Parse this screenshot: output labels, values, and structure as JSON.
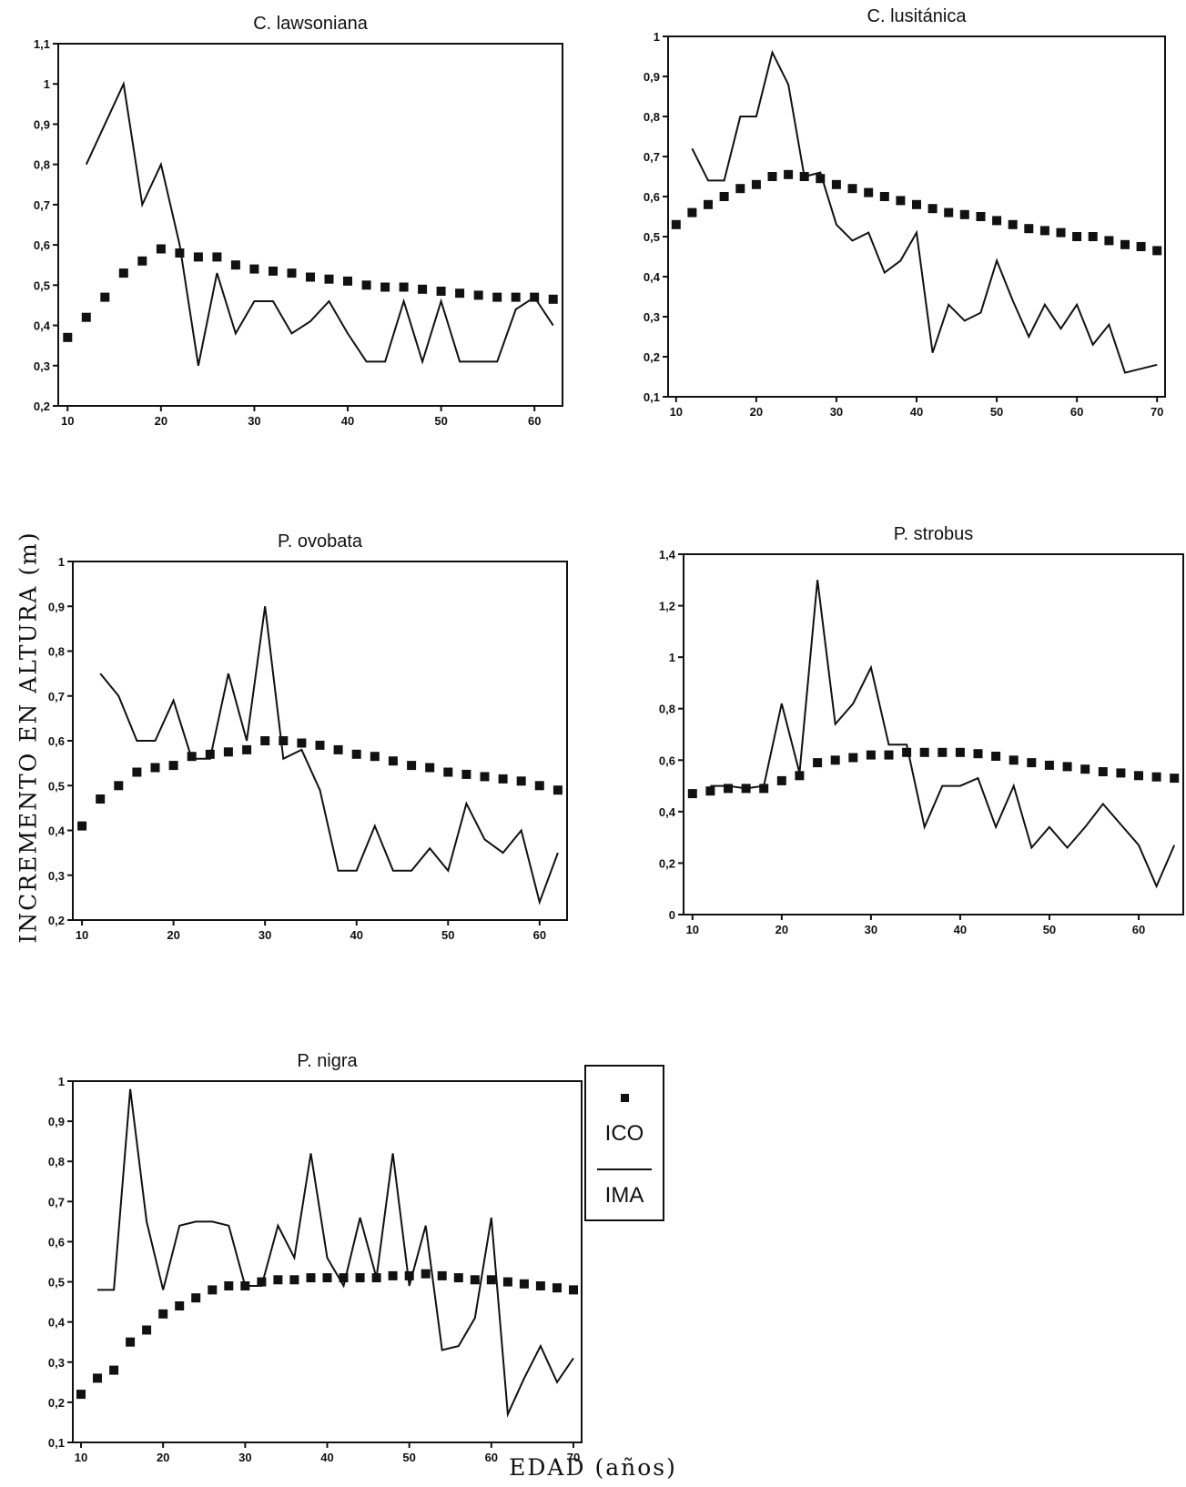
{
  "y_axis_label": "INCREMENTO EN ALTURA (m)",
  "x_axis_label": "EDAD (años)",
  "legend": {
    "ico": "ICO",
    "ima": "IMA"
  },
  "colors": {
    "ink": "#111111",
    "background": "#ffffff"
  },
  "chart_data": [
    {
      "type": "line",
      "title": "C. lawsoniana",
      "xlim": [
        9,
        63
      ],
      "ylim": [
        0.2,
        1.1
      ],
      "xticks": [
        10,
        20,
        30,
        40,
        50,
        60
      ],
      "yticks": [
        "0,2",
        "0,3",
        "0,4",
        "0,5",
        "0,6",
        "0,7",
        "0,8",
        "0,9",
        "1",
        "1,1"
      ],
      "series": [
        {
          "name": "ICO",
          "style": "markers",
          "x": [
            10,
            12,
            14,
            16,
            18,
            20,
            22,
            24,
            26,
            28,
            30,
            32,
            34,
            36,
            38,
            40,
            42,
            44,
            46,
            48,
            50,
            52,
            54,
            56,
            58,
            60,
            62
          ],
          "y": [
            0.37,
            0.42,
            0.47,
            0.53,
            0.56,
            0.59,
            0.58,
            0.57,
            0.57,
            0.55,
            0.54,
            0.535,
            0.53,
            0.52,
            0.515,
            0.51,
            0.5,
            0.495,
            0.495,
            0.49,
            0.485,
            0.48,
            0.475,
            0.47,
            0.47,
            0.47,
            0.465
          ]
        },
        {
          "name": "IMA",
          "style": "line",
          "x": [
            12,
            14,
            16,
            18,
            20,
            22,
            24,
            26,
            28,
            30,
            32,
            34,
            36,
            38,
            40,
            42,
            44,
            46,
            48,
            50,
            52,
            54,
            56,
            58,
            60,
            62
          ],
          "y": [
            0.8,
            0.9,
            1.0,
            0.7,
            0.8,
            0.6,
            0.3,
            0.53,
            0.38,
            0.46,
            0.46,
            0.38,
            0.41,
            0.46,
            0.38,
            0.31,
            0.31,
            0.46,
            0.31,
            0.46,
            0.31,
            0.31,
            0.31,
            0.44,
            0.47,
            0.4
          ]
        }
      ]
    },
    {
      "type": "line",
      "title": "C. lusitánica",
      "xlim": [
        9,
        71
      ],
      "ylim": [
        0.1,
        1.0
      ],
      "xticks": [
        10,
        20,
        30,
        40,
        50,
        60,
        70
      ],
      "yticks": [
        "0,1",
        "0,2",
        "0,3",
        "0,4",
        "0,5",
        "0,6",
        "0,7",
        "0,8",
        "0,9",
        "1"
      ],
      "series": [
        {
          "name": "ICO",
          "style": "markers",
          "x": [
            10,
            12,
            14,
            16,
            18,
            20,
            22,
            24,
            26,
            28,
            30,
            32,
            34,
            36,
            38,
            40,
            42,
            44,
            46,
            48,
            50,
            52,
            54,
            56,
            58,
            60,
            62,
            64,
            66,
            68,
            70
          ],
          "y": [
            0.53,
            0.56,
            0.58,
            0.6,
            0.62,
            0.63,
            0.65,
            0.655,
            0.65,
            0.645,
            0.63,
            0.62,
            0.61,
            0.6,
            0.59,
            0.58,
            0.57,
            0.56,
            0.555,
            0.55,
            0.54,
            0.53,
            0.52,
            0.515,
            0.51,
            0.5,
            0.5,
            0.49,
            0.48,
            0.475,
            0.465
          ]
        },
        {
          "name": "IMA",
          "style": "line",
          "x": [
            12,
            14,
            16,
            18,
            20,
            22,
            24,
            26,
            28,
            30,
            32,
            34,
            36,
            38,
            40,
            42,
            44,
            46,
            48,
            50,
            52,
            54,
            56,
            58,
            60,
            62,
            64,
            66,
            68,
            70
          ],
          "y": [
            0.72,
            0.64,
            0.64,
            0.8,
            0.8,
            0.96,
            0.88,
            0.65,
            0.66,
            0.53,
            0.49,
            0.51,
            0.41,
            0.44,
            0.51,
            0.21,
            0.33,
            0.29,
            0.31,
            0.44,
            0.34,
            0.25,
            0.33,
            0.27,
            0.33,
            0.23,
            0.28,
            0.16,
            0.17,
            0.18
          ]
        }
      ]
    },
    {
      "type": "line",
      "title": "P. ovobata",
      "xlim": [
        9,
        63
      ],
      "ylim": [
        0.2,
        1.0
      ],
      "xticks": [
        10,
        20,
        30,
        40,
        50,
        60
      ],
      "yticks": [
        "0,2",
        "0,3",
        "0,4",
        "0,5",
        "0,6",
        "0,7",
        "0,8",
        "0,9",
        "1"
      ],
      "series": [
        {
          "name": "ICO",
          "style": "markers",
          "x": [
            10,
            12,
            14,
            16,
            18,
            20,
            22,
            24,
            26,
            28,
            30,
            32,
            34,
            36,
            38,
            40,
            42,
            44,
            46,
            48,
            50,
            52,
            54,
            56,
            58,
            60,
            62
          ],
          "y": [
            0.41,
            0.47,
            0.5,
            0.53,
            0.54,
            0.545,
            0.565,
            0.57,
            0.575,
            0.58,
            0.6,
            0.6,
            0.595,
            0.59,
            0.58,
            0.57,
            0.565,
            0.555,
            0.545,
            0.54,
            0.53,
            0.525,
            0.52,
            0.515,
            0.51,
            0.5,
            0.49
          ]
        },
        {
          "name": "IMA",
          "style": "line",
          "x": [
            12,
            14,
            16,
            18,
            20,
            22,
            24,
            26,
            28,
            30,
            32,
            34,
            36,
            38,
            40,
            42,
            44,
            46,
            48,
            50,
            52,
            54,
            56,
            58,
            60,
            62
          ],
          "y": [
            0.75,
            0.7,
            0.6,
            0.6,
            0.69,
            0.56,
            0.56,
            0.75,
            0.6,
            0.9,
            0.56,
            0.58,
            0.49,
            0.31,
            0.31,
            0.41,
            0.31,
            0.31,
            0.36,
            0.31,
            0.46,
            0.38,
            0.35,
            0.4,
            0.24,
            0.35
          ]
        }
      ]
    },
    {
      "type": "line",
      "title": "P. strobus",
      "xlim": [
        9,
        65
      ],
      "ylim": [
        0,
        1.4
      ],
      "xticks": [
        10,
        20,
        30,
        40,
        50,
        60
      ],
      "yticks": [
        "0",
        "0,2",
        "0,4",
        "0,6",
        "0,8",
        "1",
        "1,2",
        "1,4"
      ],
      "series": [
        {
          "name": "ICO",
          "style": "markers",
          "x": [
            10,
            12,
            14,
            16,
            18,
            20,
            22,
            24,
            26,
            28,
            30,
            32,
            34,
            36,
            38,
            40,
            42,
            44,
            46,
            48,
            50,
            52,
            54,
            56,
            58,
            60,
            62,
            64
          ],
          "y": [
            0.47,
            0.48,
            0.49,
            0.49,
            0.49,
            0.52,
            0.54,
            0.59,
            0.6,
            0.61,
            0.62,
            0.62,
            0.63,
            0.63,
            0.63,
            0.63,
            0.625,
            0.615,
            0.6,
            0.59,
            0.58,
            0.575,
            0.565,
            0.555,
            0.55,
            0.54,
            0.535,
            0.53
          ]
        },
        {
          "name": "IMA",
          "style": "line",
          "x": [
            12,
            14,
            16,
            18,
            20,
            22,
            24,
            26,
            28,
            30,
            32,
            34,
            36,
            38,
            40,
            42,
            44,
            46,
            48,
            50,
            52,
            54,
            56,
            58,
            60,
            62,
            64
          ],
          "y": [
            0.5,
            0.5,
            0.49,
            0.5,
            0.82,
            0.55,
            1.3,
            0.74,
            0.82,
            0.96,
            0.66,
            0.66,
            0.34,
            0.5,
            0.5,
            0.53,
            0.34,
            0.5,
            0.26,
            0.34,
            0.26,
            0.34,
            0.43,
            0.35,
            0.27,
            0.11,
            0.27
          ]
        }
      ]
    },
    {
      "type": "line",
      "title": "P. nigra",
      "xlim": [
        9,
        71
      ],
      "ylim": [
        0.1,
        1.0
      ],
      "xticks": [
        10,
        20,
        30,
        40,
        50,
        60,
        70
      ],
      "yticks": [
        "0,1",
        "0,2",
        "0,3",
        "0,4",
        "0,5",
        "0,6",
        "0,7",
        "0,8",
        "0,9",
        "1"
      ],
      "series": [
        {
          "name": "ICO",
          "style": "markers",
          "x": [
            10,
            12,
            14,
            16,
            18,
            20,
            22,
            24,
            26,
            28,
            30,
            32,
            34,
            36,
            38,
            40,
            42,
            44,
            46,
            48,
            50,
            52,
            54,
            56,
            58,
            60,
            62,
            64,
            66,
            68,
            70
          ],
          "y": [
            0.22,
            0.26,
            0.28,
            0.35,
            0.38,
            0.42,
            0.44,
            0.46,
            0.48,
            0.49,
            0.49,
            0.5,
            0.505,
            0.505,
            0.51,
            0.51,
            0.51,
            0.51,
            0.51,
            0.515,
            0.515,
            0.52,
            0.515,
            0.51,
            0.505,
            0.505,
            0.5,
            0.495,
            0.49,
            0.485,
            0.48
          ]
        },
        {
          "name": "IMA",
          "style": "line",
          "x": [
            12,
            14,
            16,
            18,
            20,
            22,
            24,
            26,
            28,
            30,
            32,
            34,
            36,
            38,
            40,
            42,
            44,
            46,
            48,
            50,
            52,
            54,
            56,
            58,
            60,
            62,
            64,
            66,
            68,
            70
          ],
          "y": [
            0.48,
            0.48,
            0.98,
            0.65,
            0.48,
            0.64,
            0.65,
            0.65,
            0.64,
            0.49,
            0.49,
            0.64,
            0.56,
            0.82,
            0.56,
            0.49,
            0.66,
            0.51,
            0.82,
            0.49,
            0.64,
            0.33,
            0.34,
            0.41,
            0.66,
            0.17,
            0.26,
            0.34,
            0.25,
            0.31
          ]
        }
      ]
    }
  ]
}
